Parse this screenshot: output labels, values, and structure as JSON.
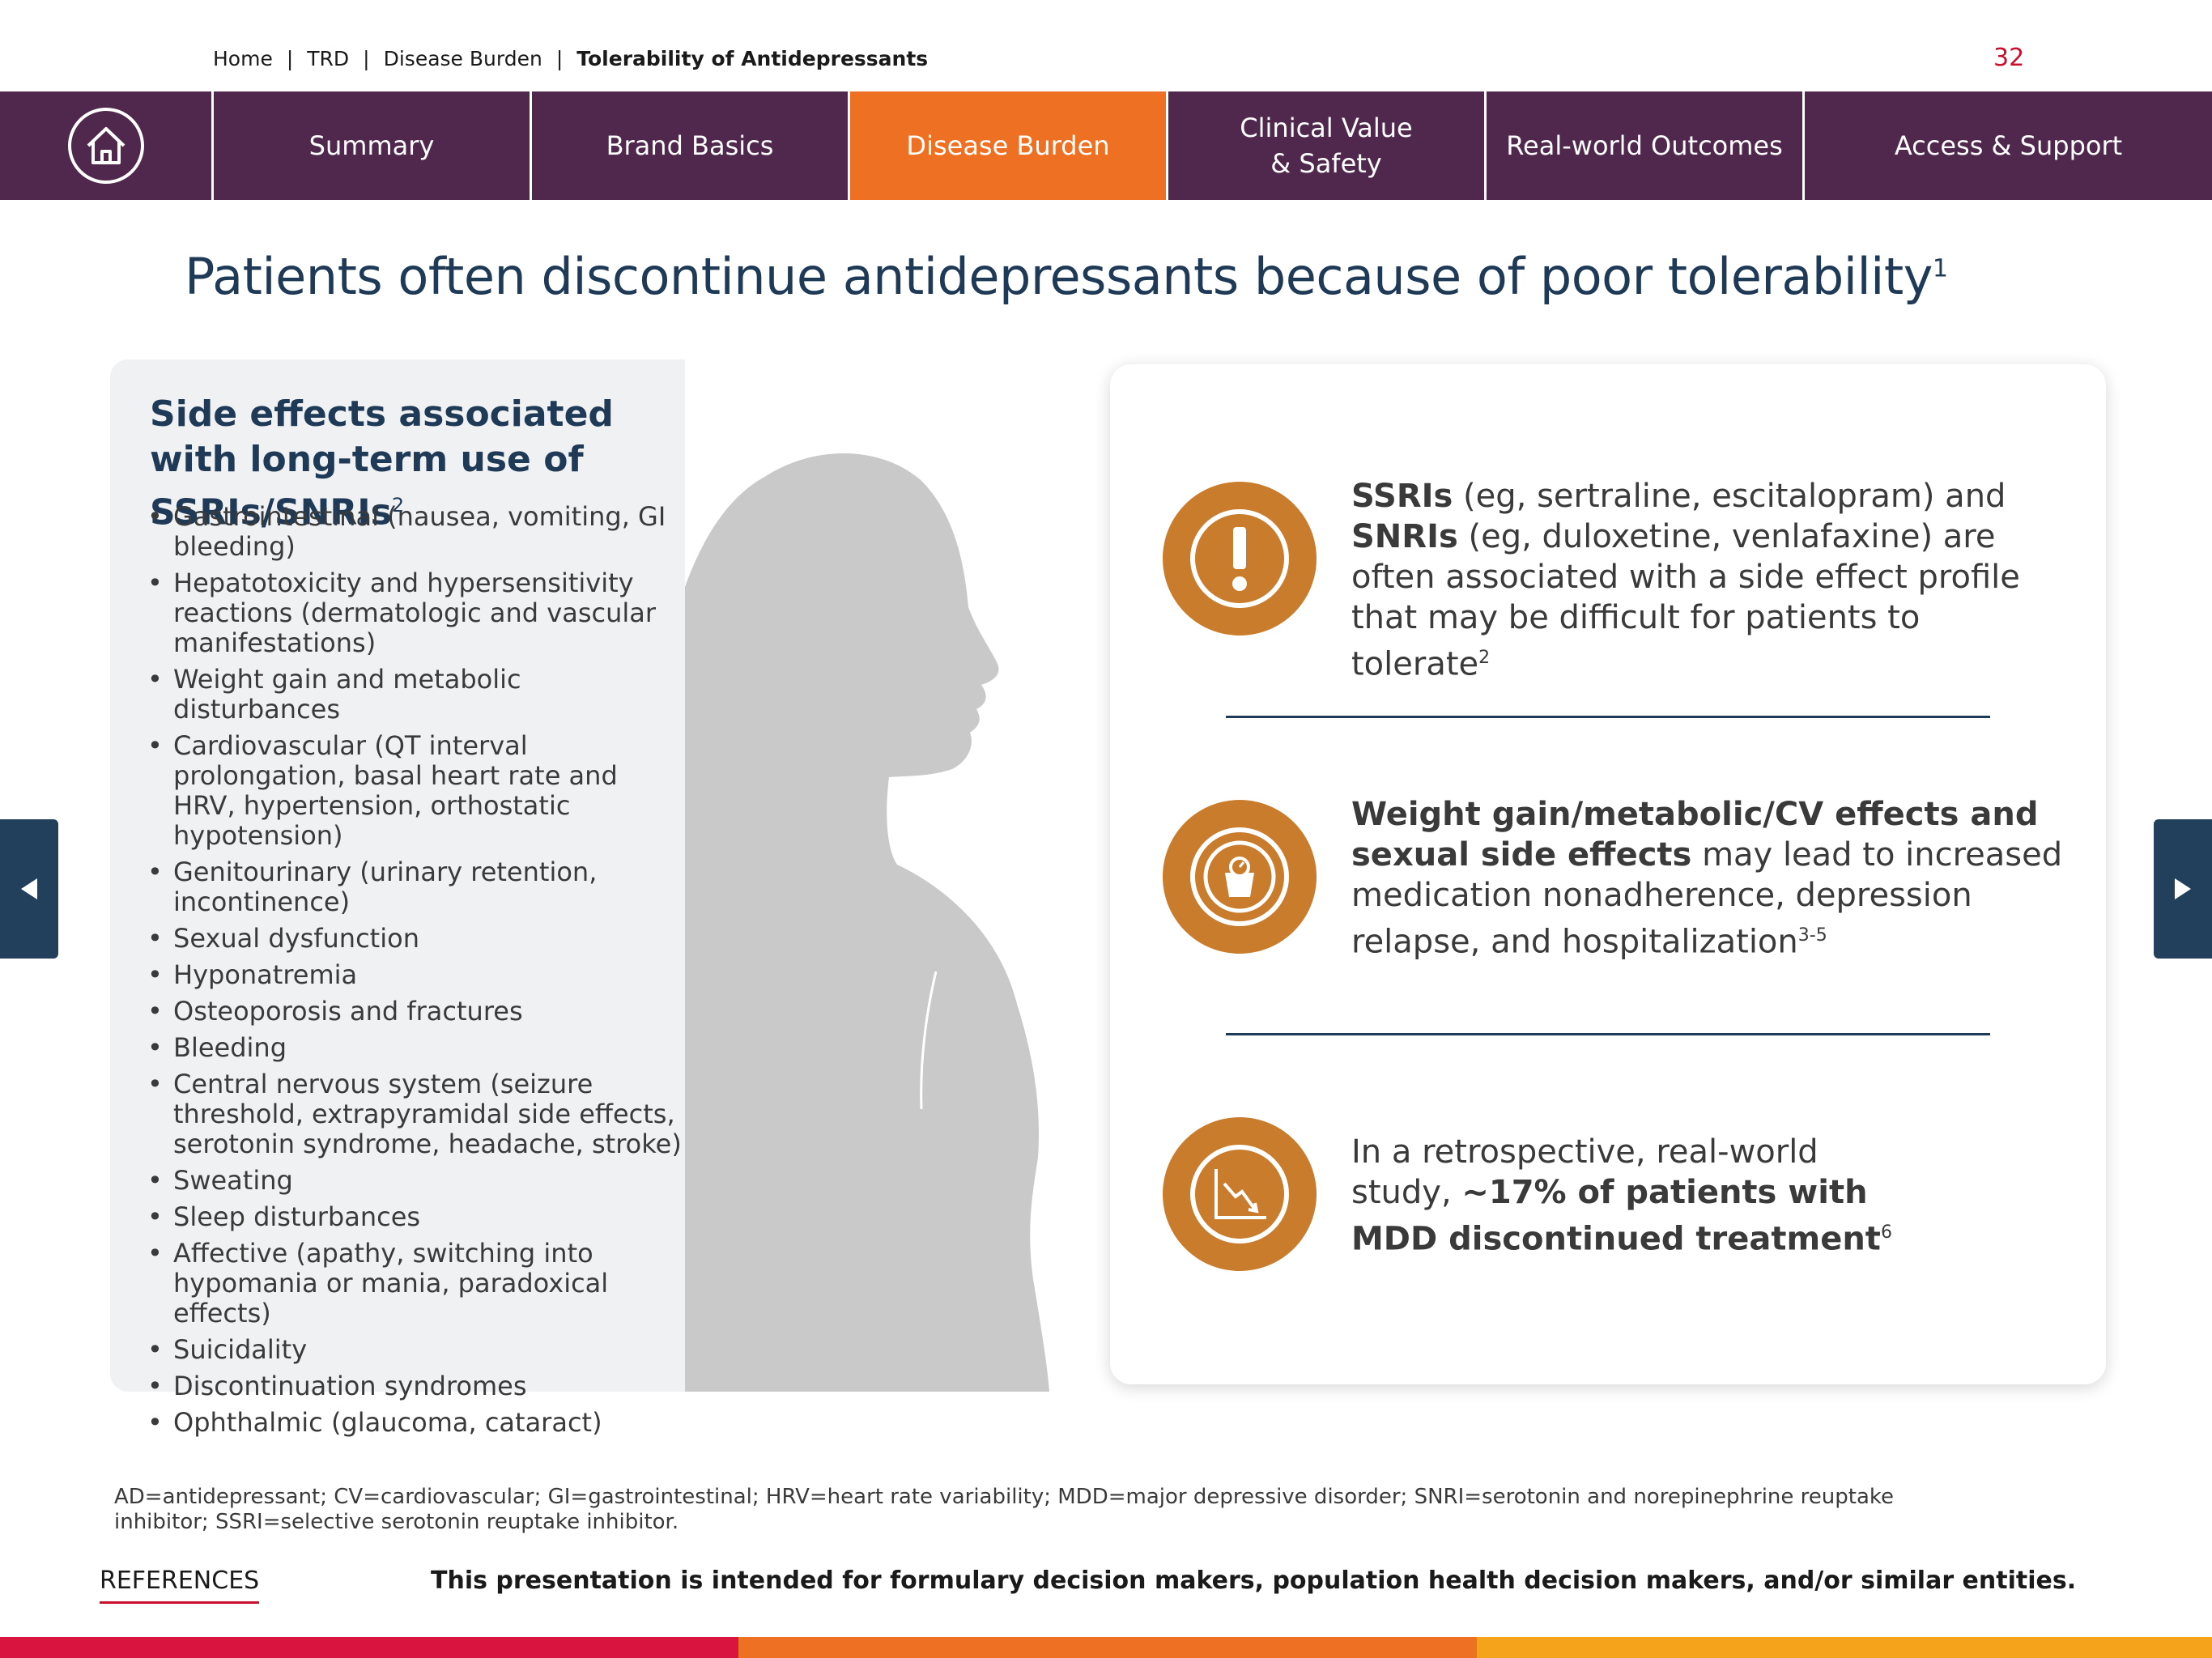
{
  "breadcrumb": {
    "items": [
      "Home",
      "TRD",
      "Disease Burden"
    ],
    "current": "Tolerability of Antidepressants",
    "separator": "|"
  },
  "page_number": "32",
  "nav": {
    "home_icon": "home-icon",
    "tabs": [
      {
        "label": "Summary",
        "active": false
      },
      {
        "label": "Brand Basics",
        "active": false
      },
      {
        "label": "Disease Burden",
        "active": true
      },
      {
        "label": "Clinical Value\n& Safety",
        "active": false
      },
      {
        "label": "Real-world Outcomes",
        "active": false
      },
      {
        "label": "Access & Support",
        "active": false
      }
    ]
  },
  "title": {
    "text": "Patients often discontinue antidepressants because of poor tolerability",
    "ref": "1"
  },
  "side_effects": {
    "heading": "Side effects associated with long-term use of SSRIs/SNRIs",
    "ref": "2",
    "items": [
      "Gastrointestinal (nausea, vomiting, GI bleeding)",
      "Hepatotoxicity and hypersensitivity reactions (dermatologic and vascular manifestations)",
      "Weight gain and metabolic disturbances",
      "Cardiovascular (QT interval prolongation, basal heart rate and HRV, hypertension, orthostatic hypotension)",
      "Genitourinary (urinary retention, incontinence)",
      "Sexual dysfunction",
      "Hyponatremia",
      "Osteoporosis and fractures",
      "Bleeding",
      "Central nervous system (seizure threshold, extrapyramidal side effects, serotonin syndrome, headache, stroke)",
      "Sweating",
      "Sleep disturbances",
      "Affective (apathy, switching into hypomania or mania, paradoxical effects)",
      "Suicidality",
      "Discontinuation syndromes",
      "Ophthalmic (glaucoma, cataract)"
    ]
  },
  "points": [
    {
      "icon": "exclamation-icon",
      "parts": {
        "b1": "SSRIs",
        "t1": " (eg, sertraline, escitalopram) and ",
        "b2": "SNRIs",
        "t2": " (eg, duloxetine, venlafaxine) are often associated with a side effect profile that may be difficult for patients to tolerate",
        "ref": "2"
      }
    },
    {
      "icon": "scale-icon",
      "parts": {
        "b1": "Weight gain/metabolic/CV effects and sexual side effects",
        "t1": " may lead to increased medication nonadherence, depression relapse, and hospitalization",
        "ref": "3-5"
      }
    },
    {
      "icon": "declining-chart-icon",
      "parts": {
        "t1": "In a retrospective, real-world study, ",
        "b1": "~17% of patients with MDD discontinued treatment",
        "ref": "6"
      }
    }
  ],
  "abbreviations": "AD=antidepressant; CV=cardiovascular; GI=gastrointestinal; HRV=heart rate variability; MDD=major depressive disorder; SNRI=serotonin and norepinephrine reuptake inhibitor; SSRI=selective serotonin reuptake inhibitor.",
  "references_label": "REFERENCES",
  "disclaimer": "This presentation is intended for formulary decision makers, population health decision makers, and/or similar entities.",
  "colors": {
    "nav_bg": "#50284d",
    "nav_active": "#ee7023",
    "title": "#1f3a56",
    "icon_circle": "#c97c2c",
    "page_number": "#c8102e",
    "side_arrow": "#22405b",
    "footer_bar": [
      "#d9153f",
      "#ee7023",
      "#f5a31a"
    ]
  }
}
